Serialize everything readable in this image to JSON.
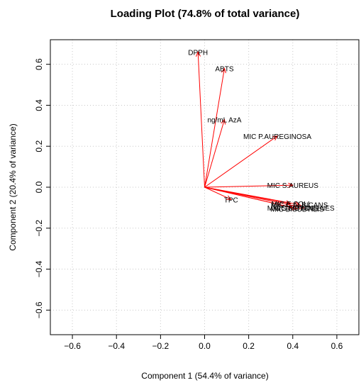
{
  "chart_data": {
    "type": "scatter",
    "title": "Loading Plot (74.8% of total variance)",
    "xlabel": "Component 1 (54.4% of variance)",
    "ylabel": "Component 2 (20.4% of variance)",
    "xlim": [
      -0.7,
      0.7
    ],
    "ylim": [
      -0.72,
      0.72
    ],
    "xticks": [
      -0.6,
      -0.4,
      -0.2,
      0.0,
      0.2,
      0.4,
      0.6
    ],
    "yticks": [
      -0.6,
      -0.4,
      -0.2,
      0.0,
      0.2,
      0.4,
      0.6
    ],
    "xtick_labels": [
      "−0.6",
      "−0.4",
      "−0.2",
      "0.0",
      "0.2",
      "0.4",
      "0.6"
    ],
    "ytick_labels": [
      "−0.6",
      "−0.4",
      "−0.2",
      "0.0",
      "0.2",
      "0.4",
      "0.6"
    ],
    "grid": true,
    "arrow_color": "#ff0000",
    "vectors": [
      {
        "label": "DPPH",
        "x": -0.03,
        "y": 0.66
      },
      {
        "label": "ABTS",
        "x": 0.09,
        "y": 0.58
      },
      {
        "label": "ng/mL AzA",
        "x": 0.09,
        "y": 0.33
      },
      {
        "label": "MIC P.AUREGINOSA",
        "x": 0.33,
        "y": 0.25
      },
      {
        "label": "MIC S.AUREUS",
        "x": 0.4,
        "y": 0.01
      },
      {
        "label": "TPC",
        "x": 0.12,
        "y": -0.06
      },
      {
        "label": "MIC E.COLI",
        "x": 0.39,
        "y": -0.08
      },
      {
        "label": "MIC C.ALBICANS",
        "x": 0.43,
        "y": -0.085
      },
      {
        "label": "MIC S.MUTANS",
        "x": 0.4,
        "y": -0.1
      },
      {
        "label": "MIC S.PYOGENES",
        "x": 0.45,
        "y": -0.1
      },
      {
        "label": "MIC B.SUBTILIS",
        "x": 0.42,
        "y": -0.105
      }
    ]
  }
}
